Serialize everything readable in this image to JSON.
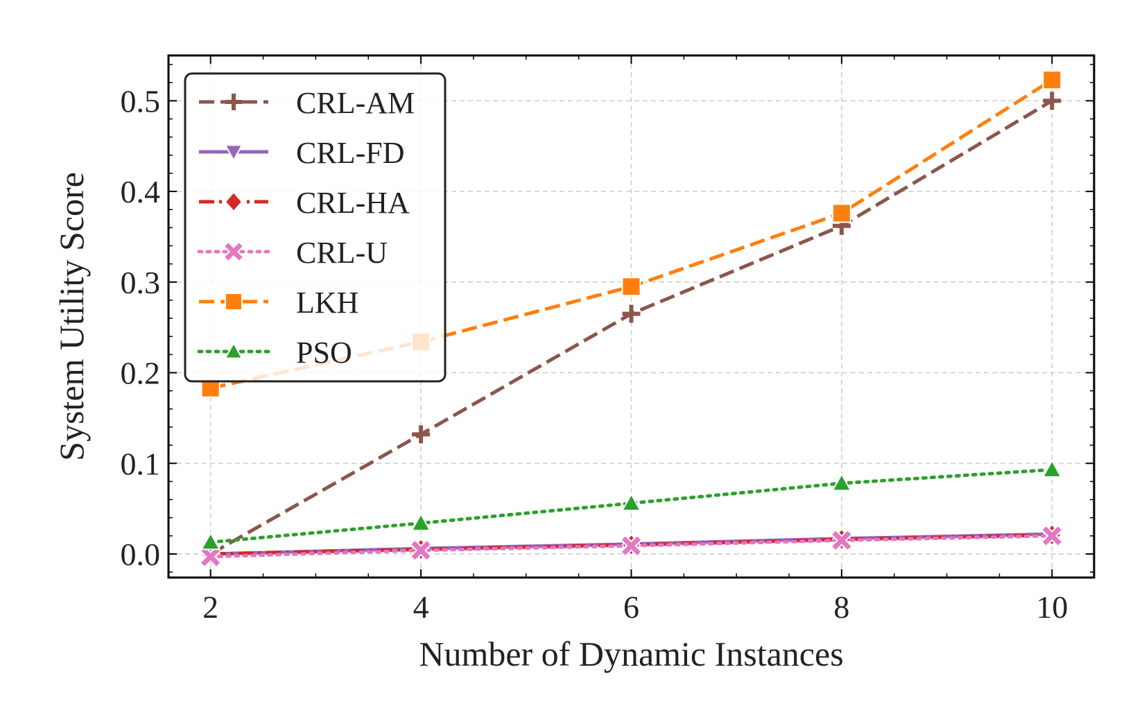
{
  "chart_data": {
    "type": "line",
    "title": "",
    "xlabel": "Number of Dynamic Instances",
    "ylabel": "System Utility Score",
    "x": [
      2,
      4,
      6,
      8,
      10
    ],
    "xlim": [
      1.6,
      10.4
    ],
    "ylim": [
      -0.026,
      0.55
    ],
    "xticks": [
      2,
      4,
      6,
      8,
      10
    ],
    "xtick_labels": [
      "2",
      "4",
      "6",
      "8",
      "10"
    ],
    "yticks": [
      0.0,
      0.1,
      0.2,
      0.3,
      0.4,
      0.5
    ],
    "ytick_labels": [
      "0.0",
      "0.1",
      "0.2",
      "0.3",
      "0.4",
      "0.5"
    ],
    "grid": true,
    "legend_position": "top-left",
    "series": [
      {
        "name": "CRL-AM",
        "values": [
          0.0,
          0.132,
          0.265,
          0.362,
          0.5
        ],
        "color": "#8c564b",
        "dash": "dashed",
        "marker": "plus"
      },
      {
        "name": "CRL-FD",
        "values": [
          0.0,
          0.006,
          0.011,
          0.017,
          0.022
        ],
        "color": "#9467bd",
        "dash": "solid",
        "marker": "triangle-down"
      },
      {
        "name": "CRL-HA",
        "values": [
          0.0,
          0.005,
          0.01,
          0.016,
          0.021
        ],
        "color": "#d62728",
        "dash": "dashdot",
        "marker": "diamond"
      },
      {
        "name": "CRL-U",
        "values": [
          -0.003,
          0.004,
          0.009,
          0.015,
          0.02
        ],
        "color": "#e377c2",
        "dash": "dotted",
        "marker": "x"
      },
      {
        "name": "LKH",
        "values": [
          0.183,
          0.234,
          0.295,
          0.376,
          0.523
        ],
        "color": "#ff7f0e",
        "dash": "dashed",
        "marker": "square"
      },
      {
        "name": "PSO",
        "values": [
          0.013,
          0.034,
          0.056,
          0.078,
          0.093
        ],
        "color": "#2ca02c",
        "dash": "dotted",
        "marker": "triangle-up"
      }
    ]
  }
}
